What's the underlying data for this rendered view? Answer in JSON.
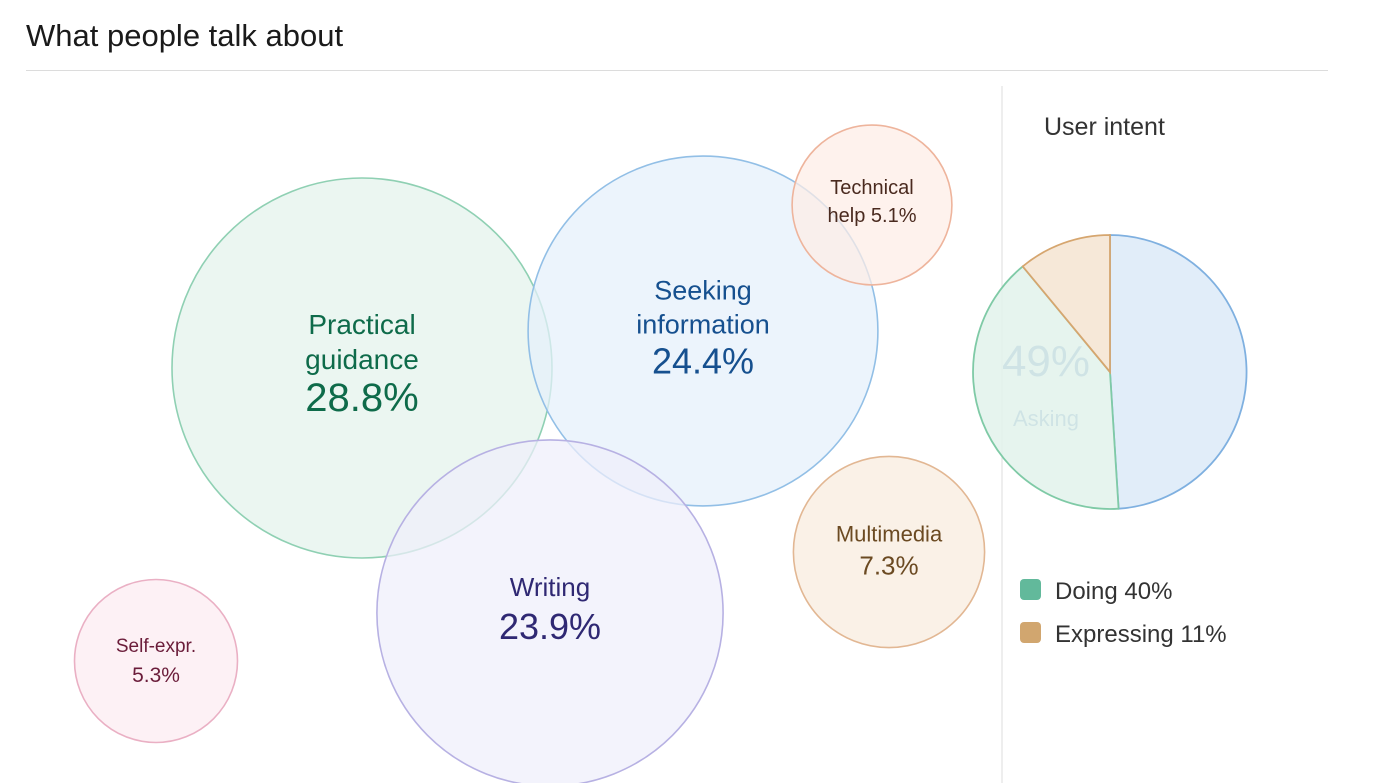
{
  "page": {
    "title": "What people talk about"
  },
  "chart_data": [
    {
      "type": "bubble",
      "title": "",
      "bubbles": [
        {
          "name_lines": [
            "Practical",
            "guidance"
          ],
          "value": 28.8,
          "label": "28.8%",
          "fill": "#e3f3ec",
          "stroke": "#8fd0b3",
          "text": "#0e6b4a"
        },
        {
          "name_lines": [
            "Seeking",
            "information"
          ],
          "value": 24.4,
          "label": "24.4%",
          "fill": "#e5f0fb",
          "stroke": "#92bfe6",
          "text": "#16508f"
        },
        {
          "name_lines": [
            "Writing"
          ],
          "value": 23.9,
          "label": "23.9%",
          "fill": "#efeefb",
          "stroke": "#b7b1e3",
          "text": "#2f2873"
        },
        {
          "name_lines": [
            "Multimedia"
          ],
          "value": 7.3,
          "label": "7.3%",
          "fill": "#f8ebde",
          "stroke": "#e2b793",
          "text": "#6b4a22"
        },
        {
          "name_lines": [
            "Self-expr."
          ],
          "value": 5.3,
          "label": "5.3%",
          "fill": "#fcecf1",
          "stroke": "#eab0c4",
          "text": "#6b1d3a"
        },
        {
          "name_lines": [
            "Technical",
            "help 5.1%"
          ],
          "value": 5.1,
          "label": "",
          "fill": "#fdede6",
          "stroke": "#eeb49c",
          "text": "#4a2a1f"
        }
      ]
    },
    {
      "type": "pie",
      "title": "User intent",
      "slices": [
        {
          "name": "Asking",
          "value": 49,
          "label": "49%",
          "color": "#dceaf8",
          "stroke": "#7fb0e0",
          "text": "#17589e",
          "exploded": true
        },
        {
          "name": "Doing",
          "value": 40,
          "legend": "Doing 40%",
          "color": "#e3f3ec",
          "stroke": "#7fcaa6",
          "swatch": "#62b99b"
        },
        {
          "name": "Expressing",
          "value": 11,
          "legend": "Expressing 11%",
          "color": "#f5e6d4",
          "stroke": "#d6a66f",
          "swatch": "#d1a66f"
        }
      ]
    }
  ]
}
